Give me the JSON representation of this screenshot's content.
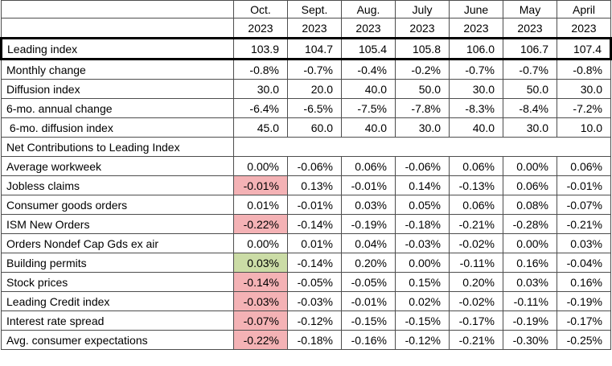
{
  "colors": {
    "negative_cell_bg": "#f4b2b5",
    "positive_cell_bg": "#cbdca6",
    "grid_line": "#4d4d4d",
    "highlight_border": "#000000"
  },
  "chart_data": {
    "type": "table",
    "column_headers": {
      "corner": "",
      "months": [
        "Oct.",
        "Sept.",
        "Aug.",
        "July",
        "June",
        "May",
        "April"
      ],
      "years": [
        "2023",
        "2023",
        "2023",
        "2023",
        "2023",
        "2023",
        "2023"
      ]
    },
    "rows": [
      {
        "label": "Leading index",
        "emphasis": "boxed",
        "values": [
          "103.9",
          "104.7",
          "105.4",
          "105.8",
          "106.0",
          "106.7",
          "107.4"
        ]
      },
      {
        "label": "Monthly change",
        "values": [
          "-0.8%",
          "-0.7%",
          "-0.4%",
          "-0.2%",
          "-0.7%",
          "-0.7%",
          "-0.8%"
        ]
      },
      {
        "label": "Diffusion index",
        "values": [
          "30.0",
          "20.0",
          "40.0",
          "50.0",
          "30.0",
          "50.0",
          "30.0"
        ]
      },
      {
        "label": "6-mo. annual change",
        "values": [
          "-6.4%",
          "-6.5%",
          "-7.5%",
          "-7.8%",
          "-8.3%",
          "-8.4%",
          "-7.2%"
        ]
      },
      {
        "label": " 6-mo. diffusion index",
        "values": [
          "45.0",
          "60.0",
          "40.0",
          "30.0",
          "40.0",
          "30.0",
          "10.0"
        ]
      },
      {
        "label": "Net Contributions to Leading Index",
        "section": true,
        "values": []
      },
      {
        "label": "Average workweek",
        "values": [
          "0.00%",
          "-0.06%",
          "0.06%",
          "-0.06%",
          "0.06%",
          "0.00%",
          "0.06%"
        ]
      },
      {
        "label": "Jobless claims",
        "cell_highlights": {
          "0": "negative"
        },
        "values": [
          "-0.01%",
          "0.13%",
          "-0.01%",
          "0.14%",
          "-0.13%",
          "0.06%",
          "-0.01%"
        ]
      },
      {
        "label": "Consumer goods orders",
        "values": [
          "0.01%",
          "-0.01%",
          "0.03%",
          "0.05%",
          "0.06%",
          "0.08%",
          "-0.07%"
        ]
      },
      {
        "label": "ISM New Orders",
        "cell_highlights": {
          "0": "negative"
        },
        "values": [
          "-0.22%",
          "-0.14%",
          "-0.19%",
          "-0.18%",
          "-0.21%",
          "-0.28%",
          "-0.21%"
        ]
      },
      {
        "label": "Orders Nondef Cap Gds ex air",
        "values": [
          "0.00%",
          "0.01%",
          "0.04%",
          "-0.03%",
          "-0.02%",
          "0.00%",
          "0.03%"
        ]
      },
      {
        "label": "Building permits",
        "cell_highlights": {
          "0": "positive"
        },
        "values": [
          "0.03%",
          "-0.14%",
          "0.20%",
          "0.00%",
          "-0.11%",
          "0.16%",
          "-0.04%"
        ]
      },
      {
        "label": "Stock prices",
        "cell_highlights": {
          "0": "negative"
        },
        "values": [
          "-0.14%",
          "-0.05%",
          "-0.05%",
          "0.15%",
          "0.20%",
          "0.03%",
          "0.16%"
        ]
      },
      {
        "label": "Leading Credit index",
        "cell_highlights": {
          "0": "negative"
        },
        "values": [
          "-0.03%",
          "-0.03%",
          "-0.01%",
          "0.02%",
          "-0.02%",
          "-0.11%",
          "-0.19%"
        ]
      },
      {
        "label": "Interest rate spread",
        "cell_highlights": {
          "0": "negative"
        },
        "values": [
          "-0.07%",
          "-0.12%",
          "-0.15%",
          "-0.15%",
          "-0.17%",
          "-0.19%",
          "-0.17%"
        ]
      },
      {
        "label": "Avg. consumer expectations",
        "cell_highlights": {
          "0": "negative"
        },
        "values": [
          "-0.22%",
          "-0.18%",
          "-0.16%",
          "-0.12%",
          "-0.21%",
          "-0.30%",
          "-0.25%"
        ]
      }
    ]
  }
}
